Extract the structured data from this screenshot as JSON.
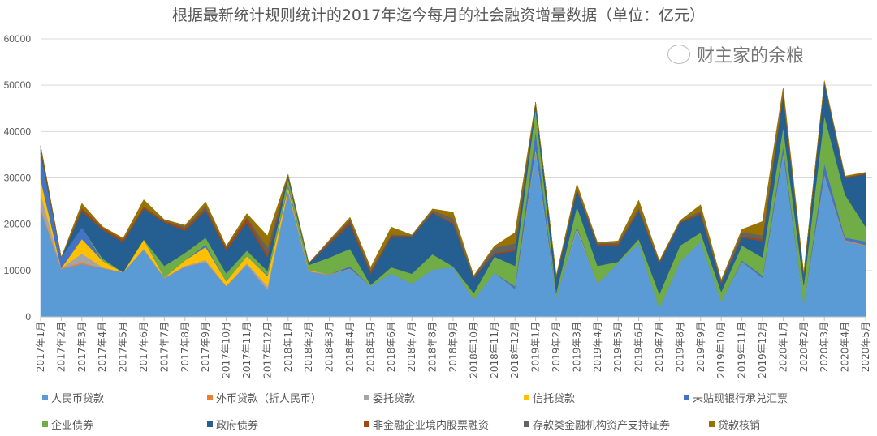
{
  "chart_data": {
    "type": "area",
    "stacked": true,
    "title": "根据最新统计规则统计的2017年迄今每月的社会融资增量数据（单位：亿元）",
    "xlabel": "",
    "ylabel": "",
    "ylim": [
      0,
      60000
    ],
    "yticks": [
      "0",
      "10000",
      "20000",
      "30000",
      "40000",
      "50000",
      "60000"
    ],
    "grid": true,
    "legend_position": "bottom",
    "categories": [
      "2017年1月",
      "2017年2月",
      "2017年3月",
      "2017年4月",
      "2017年5月",
      "2017年6月",
      "2017年7月",
      "2017年8月",
      "2017年9月",
      "2017年10月",
      "2017年11月",
      "2017年12月",
      "2018年1月",
      "2018年2月",
      "2018年3月",
      "2018年4月",
      "2018年5月",
      "2018年6月",
      "2018年7月",
      "2018年8月",
      "2018年9月",
      "2018年10月",
      "2018年11月",
      "2018年12月",
      "2019年1月",
      "2019年2月",
      "2019年3月",
      "2019年4月",
      "2019年5月",
      "2019年6月",
      "2019年7月",
      "2019年8月",
      "2019年9月",
      "2019年10月",
      "2019年11月",
      "2019年12月",
      "2020年1月",
      "2020年2月",
      "2020年3月",
      "2020年4月",
      "2020年5月"
    ],
    "series": [
      {
        "name": "人民币贷款",
        "color": "#5B9BD5",
        "values": [
          23000,
          10300,
          11400,
          10500,
          9600,
          14500,
          8300,
          10800,
          11800,
          6600,
          11200,
          5800,
          26900,
          9800,
          9100,
          10300,
          6600,
          9400,
          7200,
          10200,
          10700,
          3700,
          9500,
          6000,
          35700,
          4300,
          18900,
          7200,
          11600,
          15900,
          1900,
          11900,
          16300,
          3300,
          11900,
          8400,
          35100,
          2800,
          30400,
          16300,
          15400
        ]
      },
      {
        "name": "外币贷款（折人民币）",
        "color": "#ED7D31",
        "values": [
          500,
          200,
          300,
          100,
          0,
          100,
          100,
          100,
          100,
          100,
          100,
          100,
          300,
          100,
          100,
          100,
          0,
          0,
          0,
          0,
          0,
          0,
          0,
          0,
          300,
          0,
          0,
          0,
          0,
          0,
          0,
          0,
          0,
          0,
          0,
          0,
          200,
          0,
          200,
          300,
          100
        ]
      },
      {
        "name": "委托贷款",
        "color": "#A5A5A5",
        "values": [
          3100,
          0,
          2000,
          100,
          0,
          100,
          100,
          100,
          400,
          0,
          300,
          700,
          200,
          0,
          0,
          0,
          0,
          0,
          0,
          0,
          0,
          0,
          0,
          0,
          0,
          0,
          0,
          0,
          0,
          0,
          0,
          0,
          0,
          0,
          0,
          0,
          0,
          0,
          0,
          0,
          0
        ]
      },
      {
        "name": "信托贷款",
        "color": "#FFC000",
        "values": [
          3100,
          0,
          3100,
          1400,
          0,
          2000,
          0,
          1200,
          2800,
          1000,
          1500,
          2200,
          500,
          200,
          0,
          0,
          0,
          0,
          0,
          0,
          0,
          0,
          0,
          0,
          300,
          0,
          200,
          0,
          0,
          0,
          0,
          0,
          0,
          0,
          0,
          0,
          0,
          0,
          0,
          0,
          0
        ]
      },
      {
        "name": "未贴现银行承兑汇票",
        "color": "#4472C4",
        "values": [
          5500,
          2300,
          2500,
          0,
          0,
          0,
          0,
          0,
          500,
          0,
          0,
          200,
          500,
          0,
          0,
          500,
          0,
          0,
          0,
          0,
          0,
          0,
          0,
          600,
          3800,
          0,
          500,
          0,
          0,
          0,
          0,
          0,
          0,
          0,
          300,
          500,
          1600,
          0,
          2500,
          500,
          800
        ]
      },
      {
        "name": "企业债券",
        "color": "#70AD47",
        "values": [
          0,
          0,
          0,
          500,
          0,
          0,
          2500,
          1600,
          1500,
          1700,
          1200,
          900,
          1400,
          1100,
          3600,
          3800,
          300,
          1300,
          2100,
          3300,
          200,
          1400,
          3500,
          4400,
          4800,
          900,
          4200,
          3800,
          300,
          900,
          3000,
          3500,
          1900,
          2100,
          3200,
          3900,
          4000,
          4000,
          10300,
          9300,
          3100
        ]
      },
      {
        "name": "政府债券",
        "color": "#255E91",
        "values": [
          800,
          0,
          3500,
          6200,
          6500,
          6600,
          9400,
          4800,
          5800,
          5000,
          6000,
          2900,
          500,
          300,
          2900,
          5300,
          2400,
          6600,
          8000,
          8900,
          9100,
          3300,
          500,
          3200,
          1100,
          3300,
          3500,
          4400,
          3500,
          6100,
          6700,
          4900,
          3900,
          1800,
          1700,
          3600,
          6800,
          2000,
          7000,
          3500,
          11400
        ]
      },
      {
        "name": "非金融企业境内股票融资",
        "color": "#9E480E",
        "values": [
          900,
          0,
          600,
          500,
          500,
          500,
          300,
          600,
          500,
          600,
          1000,
          700,
          300,
          100,
          400,
          700,
          500,
          300,
          200,
          200,
          300,
          200,
          300,
          300,
          300,
          200,
          200,
          300,
          300,
          300,
          300,
          200,
          300,
          200,
          300,
          400,
          400,
          300,
          300,
          300,
          200
        ]
      },
      {
        "name": "存款类金融机构资产支持证券",
        "color": "#636363",
        "values": [
          0,
          0,
          200,
          0,
          100,
          100,
          100,
          300,
          500,
          0,
          300,
          1500,
          0,
          0,
          300,
          300,
          300,
          200,
          100,
          400,
          1000,
          100,
          1100,
          1400,
          0,
          0,
          300,
          200,
          300,
          500,
          0,
          100,
          500,
          300,
          900,
          800,
          300,
          200,
          0,
          0,
          0
        ]
      },
      {
        "name": "贷款核销",
        "color": "#997300",
        "values": [
          100,
          0,
          900,
          200,
          300,
          1400,
          200,
          300,
          900,
          300,
          700,
          2500,
          200,
          0,
          200,
          500,
          600,
          1600,
          100,
          300,
          1300,
          200,
          400,
          2300,
          0,
          200,
          900,
          200,
          400,
          1500,
          200,
          200,
          1300,
          300,
          600,
          3000,
          1100,
          200,
          300,
          200,
          200
        ]
      }
    ]
  },
  "watermark": {
    "text": "财主家的余粮"
  }
}
